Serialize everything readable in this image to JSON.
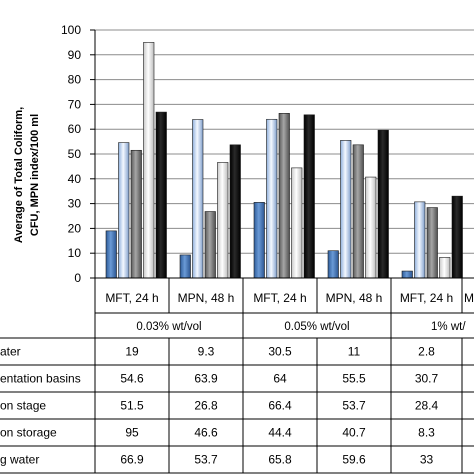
{
  "chart_data": {
    "type": "bar",
    "ylabel": "Average of Total Coliform, CFU, MPN index/100 ml",
    "ylim": [
      0,
      100
    ],
    "yticks": [
      0,
      10,
      20,
      30,
      40,
      50,
      60,
      70,
      80,
      90,
      100
    ],
    "grid": true,
    "categories": [
      "MFT, 24 h",
      "MPN, 48 h",
      "MFT, 24 h",
      "MPN, 48 h",
      "MFT, 24 h",
      "M"
    ],
    "groups": [
      "0.03% wt/vol",
      "0.05% wt/vol",
      "1% wt/"
    ],
    "series": [
      {
        "name": "ater",
        "color": "#4f81bd",
        "values": [
          19,
          9.3,
          30.5,
          11,
          2.8,
          null
        ]
      },
      {
        "name": "entation basins",
        "color": "#c6d9f1",
        "values": [
          54.6,
          63.9,
          64,
          55.5,
          30.7,
          null
        ]
      },
      {
        "name": "on stage",
        "color": "#7f7f7f",
        "values": [
          51.5,
          26.8,
          66.4,
          53.7,
          28.4,
          null
        ]
      },
      {
        "name": "on storage",
        "color": "#f2f2f2",
        "values": [
          95,
          46.6,
          44.4,
          40.7,
          8.3,
          null
        ]
      },
      {
        "name": "g water",
        "color": "#000000",
        "values": [
          66.9,
          53.7,
          65.8,
          59.6,
          33,
          null
        ]
      }
    ]
  }
}
